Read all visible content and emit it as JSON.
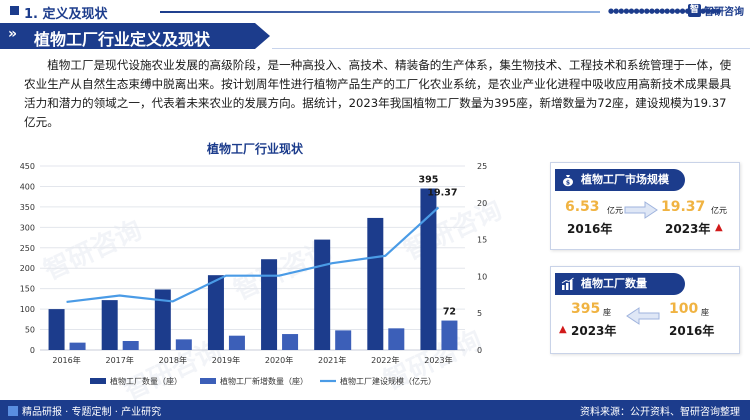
{
  "header": {
    "section_title": "1. 定义及现状",
    "brand_name": "智研咨询",
    "brand_logo": "智"
  },
  "title": {
    "arrows": "»",
    "text": "植物工厂行业定义及现状"
  },
  "description": "植物工厂是现代设施农业发展的高级阶段，是一种高投入、高技术、精装备的生产体系，集生物技术、工程技术和系统管理于一体，使农业生产从自然生态束缚中脱离出来。按计划周年性进行植物产品生产的工厂化农业系统，是农业产业化进程中吸收应用高新技术成果最具活力和潜力的领域之一，代表着未来农业的发展方向。据统计，2023年我国植物工厂数量为395座，新增数量为72座，建设规模为19.37亿元。",
  "chart_title": "植物工厂行业现状",
  "chart_data": {
    "type": "bar",
    "title": "植物工厂行业现状",
    "categories": [
      "2016年",
      "2017年",
      "2018年",
      "2019年",
      "2020年",
      "2021年",
      "2022年",
      "2023年"
    ],
    "series": [
      {
        "name": "植物工厂数量（座）",
        "type": "bar",
        "axis": "left",
        "color": "#1c3c8c",
        "values": [
          100,
          122,
          148,
          183,
          222,
          270,
          323,
          395
        ]
      },
      {
        "name": "植物工厂新增数量（座）",
        "type": "bar",
        "axis": "left",
        "color": "#3c5fb8",
        "values": [
          18,
          22,
          26,
          35,
          39,
          48,
          53,
          72
        ]
      },
      {
        "name": "植物工厂建设规模（亿元）",
        "type": "line",
        "axis": "right",
        "color": "#4a9be6",
        "values": [
          6.53,
          7.4,
          6.6,
          10.1,
          10.1,
          11.8,
          12.8,
          19.37
        ]
      }
    ],
    "left_ylim": [
      0,
      450
    ],
    "left_ticks": [
      "0",
      "50",
      "100",
      "150",
      "200",
      "250",
      "300",
      "350",
      "400",
      "450"
    ],
    "right_ylim": [
      0,
      25
    ],
    "right_ticks": [
      "0",
      "5",
      "10",
      "15",
      "20",
      "25"
    ],
    "data_labels": [
      {
        "series": "植物工厂数量（座）",
        "category": "2023年",
        "text": "395"
      },
      {
        "series": "植物工厂新增数量（座）",
        "category": "2023年",
        "text": "72"
      },
      {
        "series": "植物工厂建设规模（亿元）",
        "category": "2023年",
        "text": "19.37"
      }
    ],
    "grid": true,
    "legend_position": "bottom"
  },
  "panel_scale": {
    "title": "植物工厂市场规模",
    "icon": "money-bag-icon",
    "from_value": "6.53",
    "from_unit": "亿元",
    "from_year": "2016年",
    "to_value": "19.37",
    "to_unit": "亿元",
    "to_year": "2023年",
    "trend_symbol": "▲"
  },
  "panel_count": {
    "title": "植物工厂数量",
    "icon": "bar-chart-icon",
    "left_value": "395",
    "left_unit": "座",
    "left_year": "2023年",
    "right_value": "100",
    "right_unit": "座",
    "right_year": "2016年",
    "trend_symbol": "▲"
  },
  "footer": {
    "left_text": "精品研报 · 专题定制 · 产业研究",
    "right_text": "资料来源：公开资料、智研咨询整理"
  },
  "watermark": "智研咨询",
  "colors": {
    "primary": "#1c3c8c",
    "accent_gold": "#f0b342",
    "line_blue": "#4a9be6",
    "bar_secondary": "#3c5fb8",
    "up_red": "#d11a1a"
  }
}
